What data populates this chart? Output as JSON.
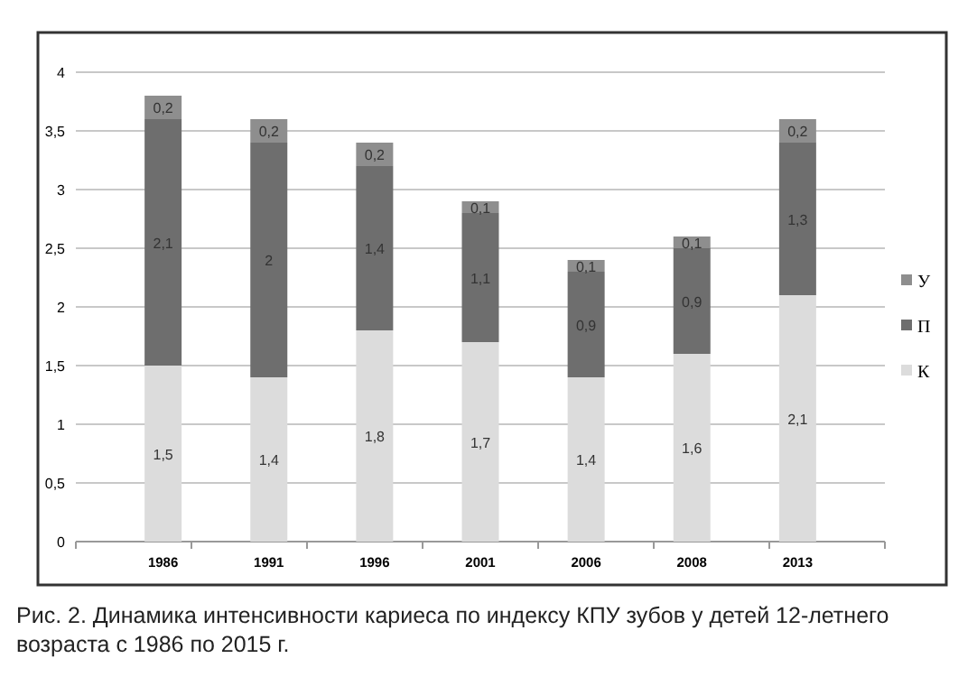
{
  "chart_data": {
    "type": "bar",
    "stacked": true,
    "categories": [
      "1986",
      "1991",
      "1996",
      "2001",
      "2006",
      "2008",
      "2013"
    ],
    "series": [
      {
        "name": "К",
        "color": "#dcdcdc",
        "values": [
          1.5,
          1.4,
          1.8,
          1.7,
          1.4,
          1.6,
          2.1
        ],
        "value_labels": [
          "1,5",
          "1,4",
          "1,8",
          "1,7",
          "1,4",
          "1,6",
          "2,1"
        ]
      },
      {
        "name": "П",
        "color": "#6e6e6e",
        "values": [
          2.1,
          2,
          1.4,
          1.1,
          0.9,
          0.9,
          1.3
        ],
        "value_labels": [
          "2,1",
          "2",
          "1,4",
          "1,1",
          "0,9",
          "0,9",
          "1,3"
        ]
      },
      {
        "name": "У",
        "color": "#8e8e8e",
        "values": [
          0.2,
          0.2,
          0.2,
          0.1,
          0.1,
          0.1,
          0.2
        ],
        "value_labels": [
          "0,2",
          "0,2",
          "0,2",
          "0,1",
          "0,1",
          "0,1",
          "0,2"
        ]
      }
    ],
    "ylim": [
      0,
      4
    ],
    "yticks": [
      0,
      {
        "value": 0.5,
        "label": "0,5"
      },
      1,
      {
        "value": 1.5,
        "label": "1,5"
      },
      2,
      {
        "value": 2.5,
        "label": "2,5"
      },
      3,
      {
        "value": 3.5,
        "label": "3,5"
      },
      4
    ],
    "grid": "y",
    "legend": "right",
    "annotations": [
      "Рис. 2. Динамика интенсивности кариеса по индексу КПУ зубов у детей 12-летнего возраста с 1986 по 2015 г."
    ]
  }
}
